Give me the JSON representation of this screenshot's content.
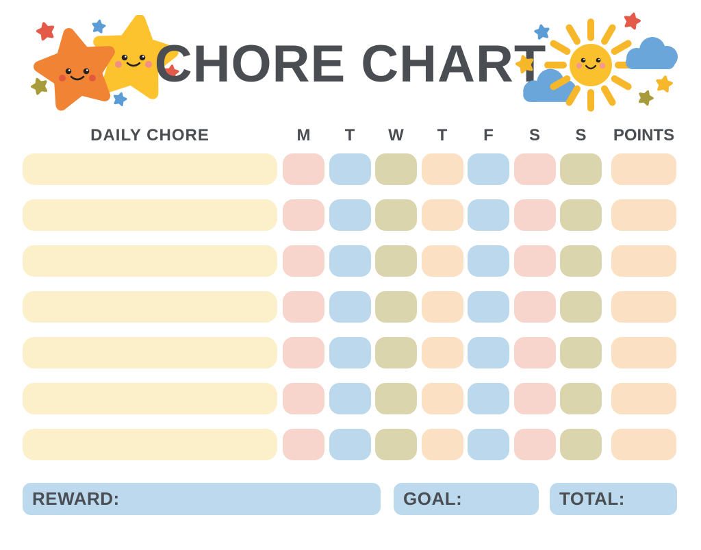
{
  "page": {
    "title": "CHORE CHART"
  },
  "colors": {
    "text": "#4a4e53",
    "cream": "#fbf0ca",
    "pink": "#f8d5cc",
    "blue": "#bcd8ed",
    "olive": "#dbd5ae",
    "peach": "#fbe0c3",
    "footer_blue": "#bcd9ee",
    "star_orange": "#f08434",
    "star_yellow": "#fcc32e",
    "accent_red": "#e45a49",
    "accent_blue": "#5b9cd5",
    "accent_olive": "#a89b3c",
    "cloud_blue": "#6ba6da",
    "sun_yellow": "#fbc02d",
    "ray_yellow": "#f7b72b",
    "face_dark": "#26211e",
    "cheek_orange": "#e4593b",
    "cheek_pink": "#f08e88",
    "cheek_sun": "#f19890"
  },
  "table": {
    "chore_header": "DAILY CHORE",
    "day_headers": [
      "M",
      "T",
      "W",
      "T",
      "F",
      "S",
      "S"
    ],
    "points_header": "POINTS",
    "row_count": 7,
    "chore_cell_color": "cream",
    "day_cell_colors": [
      "pink",
      "blue",
      "olive",
      "peach",
      "blue",
      "pink",
      "olive"
    ],
    "points_cell_color": "peach"
  },
  "footer": {
    "reward_label": "REWARD:",
    "goal_label": "GOAL:",
    "total_label": "TOTAL:"
  },
  "decorations": {
    "left": [
      "orange-star-icon",
      "yellow-star-icon",
      "sparkle-star-icons"
    ],
    "right": [
      "sun-icon",
      "cloud-icons",
      "sparkle-star-icons"
    ]
  }
}
